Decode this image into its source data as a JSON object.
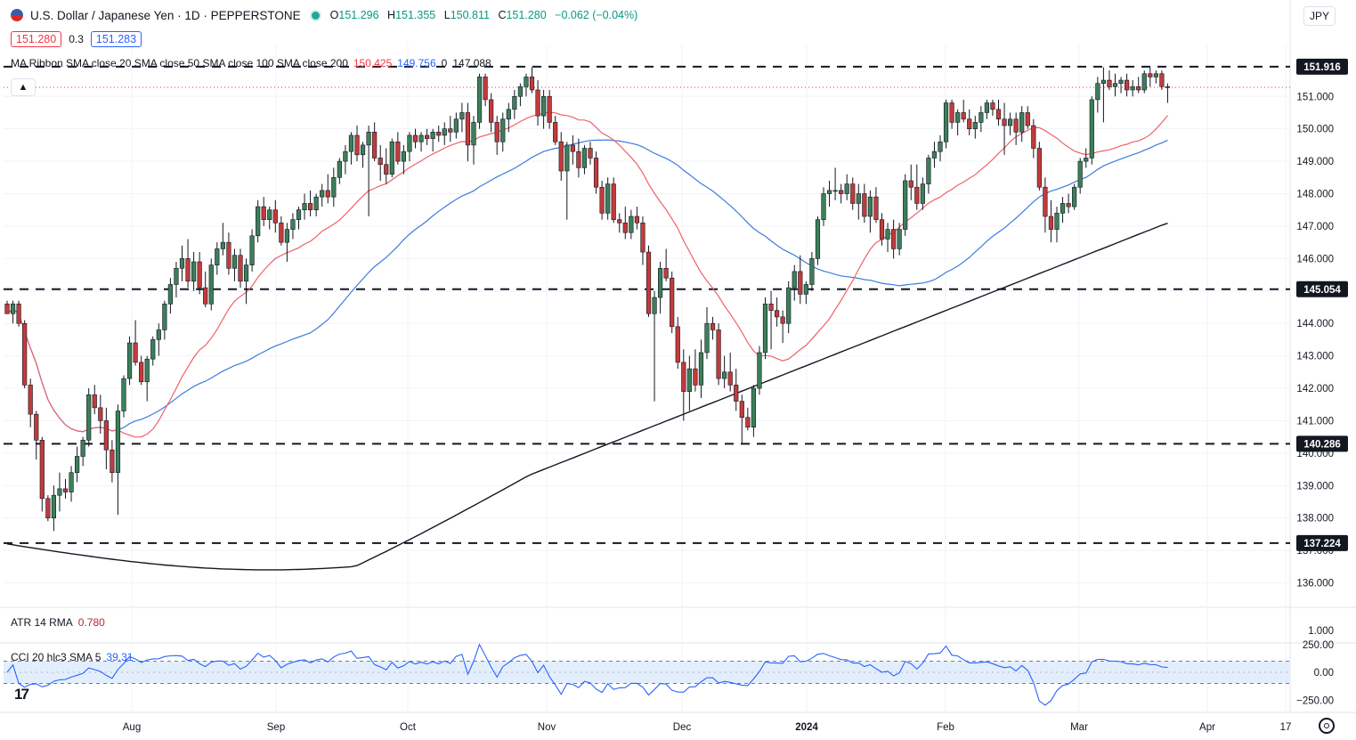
{
  "header": {
    "symbol": "U.S. Dollar / Japanese Yen · 1D · PEPPERSTONE",
    "o_label": "O",
    "o_value": "151.296",
    "h_label": "H",
    "h_value": "151.355",
    "l_label": "L",
    "l_value": "150.811",
    "c_label": "C",
    "c_value": "151.280",
    "change": "−0.062 (−0.04%)",
    "sell_price": "151.280",
    "spread": "0.3",
    "buy_price": "151.283",
    "currency": "JPY",
    "collapse_icon": "chevron-up-icon"
  },
  "ma_legend": {
    "label": "MA Ribbon SMA close 20 SMA close 50 SMA close 100 SMA close 200",
    "v20": "150.425",
    "v50": "149.756",
    "v100": "0",
    "v200": "147.088"
  },
  "atr_legend": {
    "label": "ATR 14 RMA",
    "value": "0.780"
  },
  "cci_legend": {
    "label": "CCI 20 hlc3 SMA 5",
    "value": "39.31"
  },
  "colors": {
    "up": "#3c7f59",
    "down": "#c23b3b",
    "sma20": "#f0616a",
    "sma50": "#3b7ddd",
    "sma200": "#131722",
    "atr": "#b22833",
    "cci": "#2962ff"
  },
  "chart_data": {
    "type": "candlestick",
    "x_labels": [
      "Aug",
      "Sep",
      "Oct",
      "Nov",
      "Dec",
      "2024",
      "Feb",
      "Mar",
      "Apr",
      "17"
    ],
    "y_ticks": [
      "151.000",
      "150.000",
      "149.000",
      "148.000",
      "147.000",
      "146.000",
      "145.000",
      "144.000",
      "143.000",
      "142.000",
      "141.000",
      "140.000",
      "139.000",
      "138.000",
      "137.000",
      "136.000"
    ],
    "ylim": [
      135.3,
      152.6
    ],
    "levels": [
      {
        "label": "151.916",
        "value": 151.916
      },
      {
        "label": "145.054",
        "value": 145.054
      },
      {
        "label": "140.286",
        "value": 140.286
      },
      {
        "label": "137.224",
        "value": 137.224
      }
    ],
    "last_price": 151.28,
    "ohlc": [
      [
        144.6,
        144.7,
        144.3,
        144.3
      ],
      [
        144.3,
        144.7,
        144.0,
        144.6
      ],
      [
        144.6,
        144.7,
        143.9,
        144.0
      ],
      [
        144.0,
        144.1,
        142.0,
        142.1
      ],
      [
        142.1,
        142.3,
        140.8,
        141.2
      ],
      [
        141.2,
        141.3,
        139.8,
        140.4
      ],
      [
        140.4,
        140.5,
        138.2,
        138.6
      ],
      [
        138.6,
        138.7,
        137.9,
        138.0
      ],
      [
        138.0,
        139.0,
        137.6,
        138.7
      ],
      [
        138.7,
        139.4,
        138.2,
        138.9
      ],
      [
        138.9,
        139.2,
        138.6,
        138.8
      ],
      [
        138.8,
        139.6,
        138.5,
        139.4
      ],
      [
        139.4,
        140.2,
        139.1,
        139.9
      ],
      [
        139.9,
        140.5,
        139.6,
        140.4
      ],
      [
        140.4,
        142.0,
        140.2,
        141.8
      ],
      [
        141.8,
        142.1,
        141.2,
        141.4
      ],
      [
        141.4,
        141.8,
        140.6,
        141.0
      ],
      [
        141.0,
        141.4,
        139.5,
        140.1
      ],
      [
        140.1,
        140.4,
        139.1,
        139.4
      ],
      [
        139.4,
        141.5,
        138.1,
        141.3
      ],
      [
        141.3,
        142.4,
        141.1,
        142.3
      ],
      [
        142.3,
        143.6,
        142.1,
        143.4
      ],
      [
        143.4,
        144.1,
        142.7,
        142.8
      ],
      [
        142.8,
        143.0,
        142.1,
        142.2
      ],
      [
        142.2,
        143.0,
        141.6,
        142.9
      ],
      [
        142.9,
        143.6,
        142.7,
        143.5
      ],
      [
        143.5,
        144.0,
        143.0,
        143.8
      ],
      [
        143.8,
        144.7,
        143.5,
        144.6
      ],
      [
        144.6,
        145.4,
        144.3,
        145.2
      ],
      [
        145.2,
        145.9,
        144.8,
        145.7
      ],
      [
        145.7,
        146.4,
        145.3,
        146.0
      ],
      [
        146.0,
        146.6,
        145.1,
        145.3
      ],
      [
        145.3,
        146.2,
        145.0,
        145.9
      ],
      [
        145.9,
        146.2,
        144.9,
        145.1
      ],
      [
        145.1,
        145.6,
        144.5,
        144.6
      ],
      [
        144.6,
        146.0,
        144.4,
        145.8
      ],
      [
        145.8,
        146.5,
        145.5,
        146.3
      ],
      [
        146.3,
        147.1,
        146.1,
        146.5
      ],
      [
        146.5,
        146.8,
        145.5,
        145.7
      ],
      [
        145.7,
        146.3,
        145.3,
        146.1
      ],
      [
        146.1,
        146.3,
        145.1,
        145.3
      ],
      [
        145.3,
        146.0,
        144.6,
        145.8
      ],
      [
        145.8,
        146.9,
        145.6,
        146.7
      ],
      [
        146.7,
        147.8,
        146.5,
        147.6
      ],
      [
        147.6,
        147.9,
        147.0,
        147.2
      ],
      [
        147.2,
        147.6,
        146.9,
        147.5
      ],
      [
        147.5,
        147.8,
        146.8,
        147.1
      ],
      [
        147.1,
        147.3,
        146.4,
        146.5
      ],
      [
        146.5,
        147.1,
        145.9,
        146.9
      ],
      [
        146.9,
        147.4,
        146.6,
        147.2
      ],
      [
        147.2,
        147.6,
        146.9,
        147.5
      ],
      [
        147.5,
        148.0,
        147.2,
        147.7
      ],
      [
        147.7,
        148.1,
        147.3,
        147.5
      ],
      [
        147.5,
        148.0,
        147.3,
        147.9
      ],
      [
        147.9,
        148.3,
        147.6,
        148.1
      ],
      [
        148.1,
        148.6,
        147.7,
        147.9
      ],
      [
        147.9,
        148.8,
        147.6,
        148.5
      ],
      [
        148.5,
        149.1,
        148.3,
        149.0
      ],
      [
        149.0,
        149.5,
        148.6,
        149.3
      ],
      [
        149.3,
        149.9,
        148.9,
        149.8
      ],
      [
        149.8,
        150.1,
        149.0,
        149.2
      ],
      [
        149.2,
        149.6,
        148.8,
        149.5
      ],
      [
        149.5,
        150.1,
        147.3,
        149.9
      ],
      [
        149.9,
        150.2,
        149.0,
        149.1
      ],
      [
        149.1,
        149.5,
        148.4,
        148.9
      ],
      [
        148.9,
        149.4,
        148.3,
        148.6
      ],
      [
        148.6,
        149.7,
        148.5,
        149.6
      ],
      [
        149.6,
        149.9,
        148.9,
        149.0
      ],
      [
        149.0,
        149.5,
        148.6,
        149.3
      ],
      [
        149.3,
        149.9,
        149.0,
        149.8
      ],
      [
        149.8,
        150.0,
        149.4,
        149.6
      ],
      [
        149.6,
        149.9,
        149.3,
        149.8
      ],
      [
        149.8,
        150.0,
        149.5,
        149.7
      ],
      [
        149.7,
        150.0,
        149.3,
        149.9
      ],
      [
        149.9,
        150.1,
        149.6,
        149.8
      ],
      [
        149.8,
        150.2,
        149.5,
        150.0
      ],
      [
        150.0,
        150.4,
        149.6,
        149.9
      ],
      [
        149.9,
        150.5,
        149.7,
        150.3
      ],
      [
        150.3,
        150.8,
        149.9,
        150.5
      ],
      [
        150.5,
        150.8,
        149.0,
        149.5
      ],
      [
        149.5,
        150.4,
        148.9,
        150.2
      ],
      [
        150.2,
        151.7,
        150.0,
        151.6
      ],
      [
        151.6,
        151.7,
        150.7,
        150.9
      ],
      [
        150.9,
        151.1,
        149.9,
        150.2
      ],
      [
        150.2,
        150.4,
        149.2,
        149.6
      ],
      [
        149.6,
        150.5,
        149.3,
        150.3
      ],
      [
        150.3,
        150.8,
        149.9,
        150.6
      ],
      [
        150.6,
        151.2,
        150.3,
        151.0
      ],
      [
        151.0,
        151.4,
        150.7,
        151.3
      ],
      [
        151.3,
        151.7,
        151.0,
        151.6
      ],
      [
        151.6,
        151.9,
        151.1,
        151.2
      ],
      [
        151.2,
        151.5,
        150.1,
        150.4
      ],
      [
        150.4,
        151.2,
        150.0,
        151.0
      ],
      [
        151.0,
        151.2,
        150.0,
        150.2
      ],
      [
        150.2,
        150.4,
        149.5,
        149.6
      ],
      [
        149.6,
        149.9,
        148.4,
        148.7
      ],
      [
        148.7,
        149.6,
        147.2,
        149.5
      ],
      [
        149.5,
        149.8,
        148.9,
        149.3
      ],
      [
        149.3,
        149.7,
        148.5,
        148.8
      ],
      [
        148.8,
        149.5,
        148.6,
        149.4
      ],
      [
        149.4,
        149.6,
        148.9,
        149.1
      ],
      [
        149.1,
        149.3,
        148.0,
        148.2
      ],
      [
        148.2,
        148.4,
        147.2,
        147.4
      ],
      [
        147.4,
        148.5,
        147.2,
        148.3
      ],
      [
        148.3,
        148.5,
        147.1,
        147.2
      ],
      [
        147.2,
        147.4,
        146.8,
        147.1
      ],
      [
        147.1,
        147.6,
        146.6,
        146.8
      ],
      [
        146.8,
        147.5,
        146.6,
        147.3
      ],
      [
        147.3,
        147.6,
        146.9,
        147.1
      ],
      [
        147.1,
        147.3,
        145.8,
        146.2
      ],
      [
        146.2,
        146.4,
        144.2,
        144.3
      ],
      [
        144.3,
        145.0,
        141.6,
        144.8
      ],
      [
        144.8,
        145.9,
        144.3,
        145.7
      ],
      [
        145.7,
        146.3,
        145.3,
        145.4
      ],
      [
        145.4,
        145.6,
        143.7,
        143.9
      ],
      [
        143.9,
        144.2,
        142.6,
        142.8
      ],
      [
        142.8,
        143.2,
        141.0,
        141.9
      ],
      [
        141.9,
        143.0,
        141.3,
        142.6
      ],
      [
        142.6,
        143.2,
        141.9,
        142.1
      ],
      [
        142.1,
        143.5,
        141.7,
        143.1
      ],
      [
        143.1,
        144.5,
        142.9,
        144.0
      ],
      [
        144.0,
        144.2,
        143.5,
        143.8
      ],
      [
        143.8,
        144.0,
        142.1,
        142.3
      ],
      [
        142.3,
        143.0,
        142.0,
        142.5
      ],
      [
        142.5,
        143.1,
        141.9,
        142.1
      ],
      [
        142.1,
        142.6,
        141.3,
        141.6
      ],
      [
        141.6,
        141.8,
        140.3,
        141.1
      ],
      [
        141.1,
        141.4,
        140.7,
        140.8
      ],
      [
        140.8,
        142.1,
        140.5,
        142.0
      ],
      [
        142.0,
        143.3,
        141.8,
        143.1
      ],
      [
        143.1,
        144.8,
        142.9,
        144.6
      ],
      [
        144.6,
        145.0,
        143.2,
        144.4
      ],
      [
        144.4,
        144.8,
        143.9,
        144.2
      ],
      [
        144.2,
        144.4,
        143.4,
        144.0
      ],
      [
        144.0,
        145.3,
        143.7,
        145.1
      ],
      [
        145.1,
        145.8,
        144.7,
        145.6
      ],
      [
        145.6,
        146.1,
        144.6,
        144.9
      ],
      [
        144.9,
        145.3,
        144.6,
        145.2
      ],
      [
        145.2,
        146.2,
        145.0,
        146.0
      ],
      [
        146.0,
        147.3,
        145.8,
        147.2
      ],
      [
        147.2,
        148.2,
        147.0,
        148.0
      ],
      [
        148.0,
        148.4,
        147.6,
        148.1
      ],
      [
        148.1,
        148.8,
        147.8,
        148.1
      ],
      [
        148.1,
        148.3,
        147.7,
        148.0
      ],
      [
        148.0,
        148.6,
        147.8,
        148.3
      ],
      [
        148.3,
        148.5,
        147.5,
        147.7
      ],
      [
        147.7,
        148.3,
        147.2,
        148.0
      ],
      [
        148.0,
        148.3,
        147.1,
        147.3
      ],
      [
        147.3,
        148.1,
        146.8,
        147.9
      ],
      [
        147.9,
        148.2,
        147.1,
        147.2
      ],
      [
        147.2,
        147.4,
        146.4,
        146.6
      ],
      [
        146.6,
        147.1,
        146.2,
        146.9
      ],
      [
        146.9,
        147.2,
        146.0,
        146.3
      ],
      [
        146.3,
        147.1,
        146.1,
        146.9
      ],
      [
        146.9,
        148.6,
        146.7,
        148.4
      ],
      [
        148.4,
        148.9,
        147.8,
        148.2
      ],
      [
        148.2,
        148.9,
        147.5,
        147.7
      ],
      [
        147.7,
        148.5,
        147.5,
        148.3
      ],
      [
        148.3,
        149.2,
        148.0,
        149.1
      ],
      [
        149.1,
        149.6,
        148.8,
        149.3
      ],
      [
        149.3,
        149.8,
        149.0,
        149.6
      ],
      [
        149.6,
        150.9,
        149.4,
        150.8
      ],
      [
        150.8,
        150.9,
        150.0,
        150.2
      ],
      [
        150.2,
        150.6,
        149.8,
        150.5
      ],
      [
        150.5,
        150.9,
        150.2,
        150.3
      ],
      [
        150.3,
        150.6,
        149.8,
        150.0
      ],
      [
        150.0,
        150.4,
        149.7,
        150.2
      ],
      [
        150.2,
        150.7,
        149.9,
        150.5
      ],
      [
        150.5,
        150.9,
        150.3,
        150.8
      ],
      [
        150.8,
        150.9,
        150.4,
        150.6
      ],
      [
        150.6,
        150.9,
        150.1,
        150.3
      ],
      [
        150.3,
        150.8,
        149.2,
        150.1
      ],
      [
        150.1,
        150.5,
        149.8,
        150.3
      ],
      [
        150.3,
        150.5,
        149.5,
        149.9
      ],
      [
        149.9,
        150.7,
        149.6,
        150.5
      ],
      [
        150.5,
        150.7,
        150.0,
        150.1
      ],
      [
        150.1,
        150.3,
        149.1,
        149.4
      ],
      [
        149.4,
        149.6,
        148.1,
        148.2
      ],
      [
        148.2,
        148.5,
        146.8,
        147.3
      ],
      [
        147.3,
        147.8,
        146.5,
        146.9
      ],
      [
        146.9,
        147.6,
        146.5,
        147.4
      ],
      [
        147.4,
        147.9,
        147.1,
        147.7
      ],
      [
        147.7,
        148.0,
        147.4,
        147.6
      ],
      [
        147.6,
        148.3,
        147.5,
        148.2
      ],
      [
        148.2,
        149.1,
        148.0,
        149.0
      ],
      [
        149.0,
        149.4,
        148.8,
        149.1
      ],
      [
        149.1,
        151.0,
        148.9,
        150.9
      ],
      [
        150.9,
        151.6,
        150.5,
        151.4
      ],
      [
        151.4,
        151.9,
        150.2,
        151.5
      ],
      [
        151.5,
        151.8,
        151.2,
        151.3
      ],
      [
        151.3,
        151.7,
        151.0,
        151.4
      ],
      [
        151.4,
        151.6,
        151.1,
        151.5
      ],
      [
        151.5,
        151.7,
        151.0,
        151.2
      ],
      [
        151.2,
        151.5,
        151.0,
        151.3
      ],
      [
        151.3,
        151.6,
        151.1,
        151.2
      ],
      [
        151.2,
        151.8,
        151.1,
        151.7
      ],
      [
        151.7,
        151.9,
        151.3,
        151.6
      ],
      [
        151.6,
        151.8,
        151.4,
        151.7
      ],
      [
        151.7,
        151.8,
        151.2,
        151.3
      ],
      [
        151.3,
        151.4,
        150.8,
        151.28
      ]
    ]
  },
  "atr": {
    "label": "ATR 14 RMA",
    "value": 0.78,
    "ticks": [
      "1.000"
    ]
  },
  "cci": {
    "label": "CCI 20 hlc3 SMA 5",
    "value": 39.31,
    "ticks": [
      "250.00",
      "0.00",
      "−250.00"
    ],
    "upper": 100,
    "lower": -100
  }
}
